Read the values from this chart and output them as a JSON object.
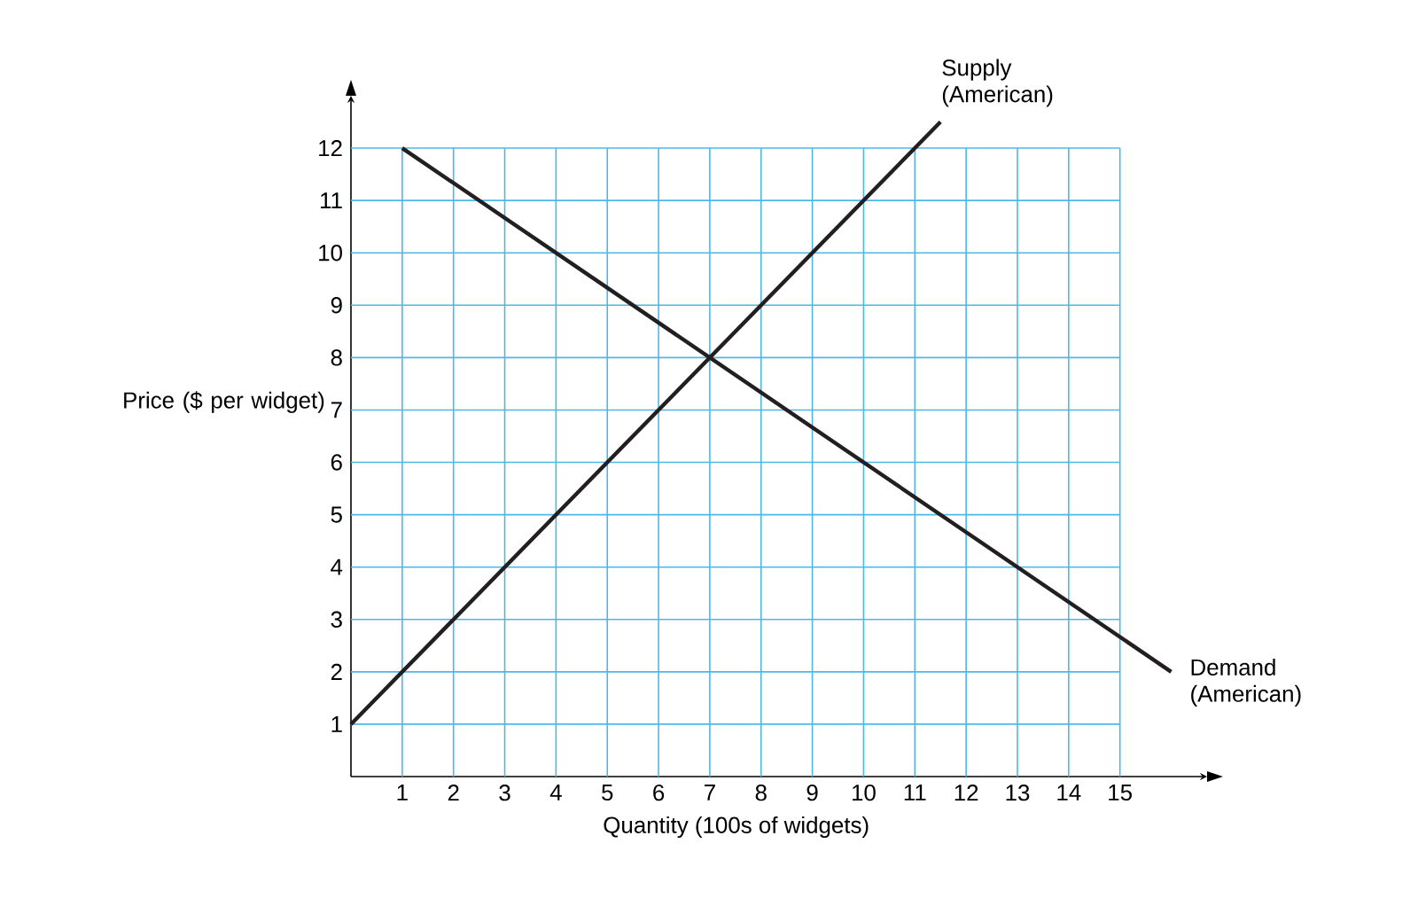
{
  "chart_data": {
    "type": "line",
    "xlabel": "Quantity (100s of widgets)",
    "ylabel": "Price ($ per widget)",
    "xlim": [
      0,
      16.7
    ],
    "ylim": [
      0,
      13
    ],
    "xticks": [
      1,
      2,
      3,
      4,
      5,
      6,
      7,
      8,
      9,
      10,
      11,
      12,
      13,
      14,
      15
    ],
    "yticks": [
      1,
      2,
      3,
      4,
      5,
      6,
      7,
      8,
      9,
      10,
      11,
      12
    ],
    "grid": true,
    "marker": "none",
    "line_style": "solid",
    "series": [
      {
        "name": "Supply (American)",
        "color": "#231f20",
        "x": [
          0,
          11.5
        ],
        "values": [
          1,
          12.5
        ]
      },
      {
        "name": "Demand (American)",
        "color": "#231f20",
        "x": [
          1,
          16
        ],
        "values": [
          12,
          2
        ]
      }
    ]
  }
}
